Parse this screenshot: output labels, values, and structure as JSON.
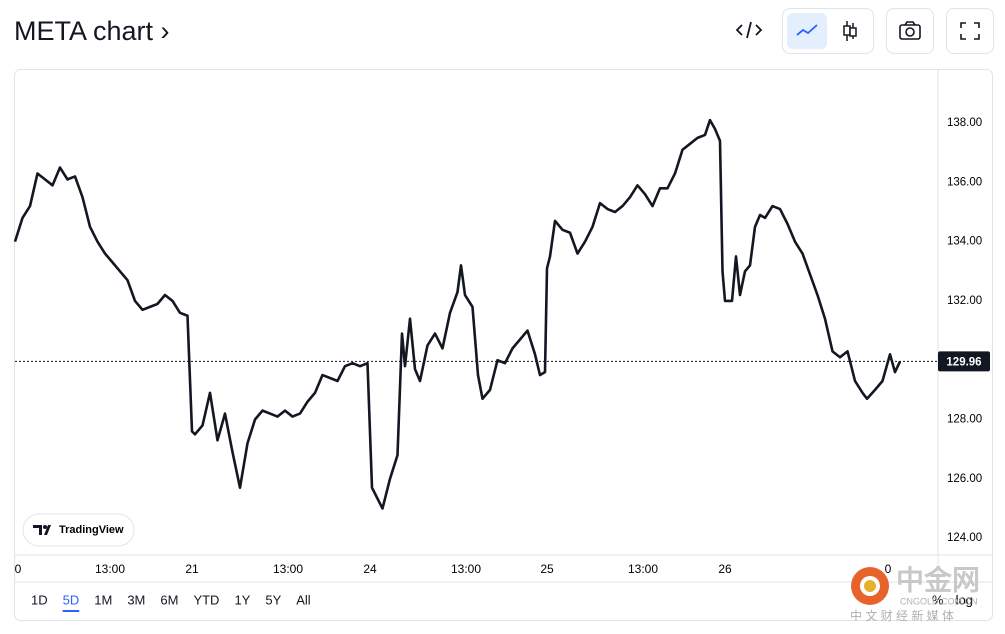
{
  "header": {
    "title": "META chart ›"
  },
  "chart_data": {
    "type": "line",
    "color": "#131722",
    "x": [
      0,
      7.5,
      15,
      22.5,
      30,
      37.5,
      45,
      52.5,
      60,
      67.5,
      75,
      82.5,
      90,
      97.5,
      105,
      112.5,
      120,
      127.5,
      135,
      142.5,
      150,
      157.5,
      165,
      172.5,
      177,
      180,
      187.5,
      195,
      202.5,
      210,
      217.5,
      225,
      232.5,
      240,
      247.5,
      255,
      262.5,
      270,
      277.5,
      285,
      292.5,
      300,
      307.5,
      315,
      322.5,
      330,
      337.5,
      345,
      352.5,
      357,
      360,
      367.5,
      375,
      382.5,
      387,
      390,
      395,
      400,
      405,
      412.5,
      420,
      427.5,
      435,
      442.5,
      446,
      450,
      457.5,
      463,
      467.5,
      475,
      482.5,
      490,
      497.5,
      505,
      512.5,
      520,
      525,
      530,
      532,
      535,
      540,
      547.5,
      555,
      562.5,
      570,
      577.5,
      585,
      592.5,
      600,
      607.5,
      615,
      622.5,
      630,
      637.5,
      645,
      652.5,
      660,
      667.5,
      675,
      682.5,
      690,
      695,
      700,
      705,
      707.5,
      710,
      717,
      721,
      725,
      730,
      735,
      740,
      745,
      750,
      757.5,
      765,
      772.5,
      780,
      787.5,
      795,
      802.5,
      810,
      817.5,
      825,
      832.5,
      840,
      847.5,
      852,
      860,
      867.5,
      875,
      880,
      885
    ],
    "values": [
      134,
      134.8,
      135.2,
      136.3,
      136.1,
      135.9,
      136.5,
      136.1,
      136.2,
      135.5,
      134.5,
      134.0,
      133.6,
      133.3,
      133.0,
      132.7,
      132.0,
      131.7,
      131.8,
      131.9,
      132.2,
      132.0,
      131.6,
      131.5,
      127.6,
      127.5,
      127.8,
      128.9,
      127.3,
      128.2,
      126.9,
      125.7,
      127.2,
      128.0,
      128.3,
      128.2,
      128.1,
      128.3,
      128.1,
      128.2,
      128.6,
      128.9,
      129.5,
      129.4,
      129.3,
      129.8,
      129.9,
      129.8,
      129.9,
      125.7,
      125.5,
      125.0,
      126.0,
      126.8,
      130.9,
      129.8,
      131.4,
      129.7,
      129.3,
      130.5,
      130.9,
      130.4,
      131.6,
      132.3,
      133.2,
      132.2,
      131.8,
      129.5,
      128.7,
      129.0,
      130.0,
      129.9,
      130.4,
      130.7,
      131.0,
      130.2,
      129.5,
      129.6,
      133.1,
      133.5,
      134.7,
      134.4,
      134.3,
      133.6,
      134.0,
      134.5,
      135.3,
      135.1,
      135.0,
      135.2,
      135.5,
      135.9,
      135.6,
      135.2,
      135.8,
      135.8,
      136.3,
      137.1,
      137.3,
      137.5,
      137.6,
      138.1,
      137.8,
      137.4,
      133.0,
      132.0,
      132.0,
      133.5,
      132.2,
      133.0,
      133.2,
      134.5,
      134.9,
      134.8,
      135.2,
      135.1,
      134.6,
      134.0,
      133.6,
      132.9,
      132.2,
      131.4,
      130.3,
      130.1,
      130.3,
      129.3,
      128.9,
      128.7,
      129.0,
      129.3,
      130.2,
      129.6,
      129.96
    ],
    "xlim": [
      0,
      923
    ],
    "xticks": [
      {
        "value": 3,
        "label": "0"
      },
      {
        "value": 95,
        "label": "13:00"
      },
      {
        "value": 177,
        "label": "21"
      },
      {
        "value": 273,
        "label": "13:00"
      },
      {
        "value": 355,
        "label": "24"
      },
      {
        "value": 451,
        "label": "13:00"
      },
      {
        "value": 532,
        "label": "25"
      },
      {
        "value": 628,
        "label": "13:00"
      },
      {
        "value": 710,
        "label": "26"
      },
      {
        "value": 873,
        "label": "0"
      }
    ],
    "ylim": [
      123.43,
      139.79
    ],
    "yticks": [
      {
        "value": 124,
        "label": "124.00"
      },
      {
        "value": 126,
        "label": "126.00"
      },
      {
        "value": 128,
        "label": "128.00"
      },
      {
        "value": 130,
        "label": "130.00"
      },
      {
        "value": 132,
        "label": "132.00"
      },
      {
        "value": 134,
        "label": "134.00"
      },
      {
        "value": 136,
        "label": "136.00"
      },
      {
        "value": 138,
        "label": "138.00"
      }
    ],
    "last_price": {
      "value": 129.96,
      "label": "129.96"
    },
    "grid": false
  },
  "range_buttons": [
    "1D",
    "5D",
    "1M",
    "3M",
    "6M",
    "YTD",
    "1Y",
    "5Y",
    "All"
  ],
  "selected_range": "5D",
  "scale_options": [
    "%",
    "log"
  ],
  "branding": "TradingView",
  "watermark": {
    "name": "中金网",
    "domain": "CNGOLD.COM.CN",
    "slogan": "中 文 财 经 新 媒 体"
  }
}
